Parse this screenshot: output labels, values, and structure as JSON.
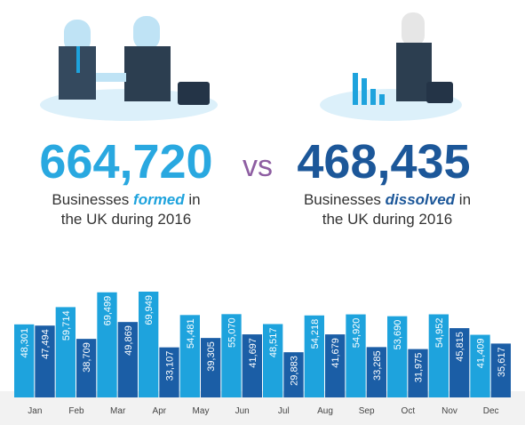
{
  "header": {
    "left": {
      "number": "664,720",
      "before": "Businesses",
      "emphasis": "formed",
      "after": "in",
      "line2": "the UK during 2016"
    },
    "versus": "vs",
    "right": {
      "number": "468,435",
      "before": "Businesses",
      "emphasis": "dissolved",
      "after": "in",
      "line2": "the UK during 2016"
    }
  },
  "chart_data": {
    "type": "bar",
    "categories": [
      "Jan",
      "Feb",
      "Mar",
      "Apr",
      "May",
      "Jun",
      "Jul",
      "Aug",
      "Sep",
      "Oct",
      "Nov",
      "Dec"
    ],
    "series": [
      {
        "color": "#1ea3dd",
        "values": [
          48301,
          59714,
          69499,
          69949,
          54481,
          55070,
          48517,
          54218,
          54920,
          53690,
          54952,
          41409
        ],
        "value_labels": [
          "48,301",
          "59,714",
          "69,499",
          "69,949",
          "54,481",
          "55,070",
          "48,517",
          "54,218",
          "54,920",
          "53,690",
          "54,952",
          "41,409"
        ]
      },
      {
        "color": "#1b5ea6",
        "values": [
          47494,
          38709,
          49869,
          33107,
          39305,
          41697,
          29883,
          41679,
          33285,
          31975,
          45815,
          35617
        ],
        "value_labels": [
          "47,494",
          "38,709",
          "49,869",
          "33,107",
          "39,305",
          "41,697",
          "29,883",
          "41,679",
          "33,285",
          "31,975",
          "45,815",
          "35,617"
        ]
      }
    ]
  }
}
